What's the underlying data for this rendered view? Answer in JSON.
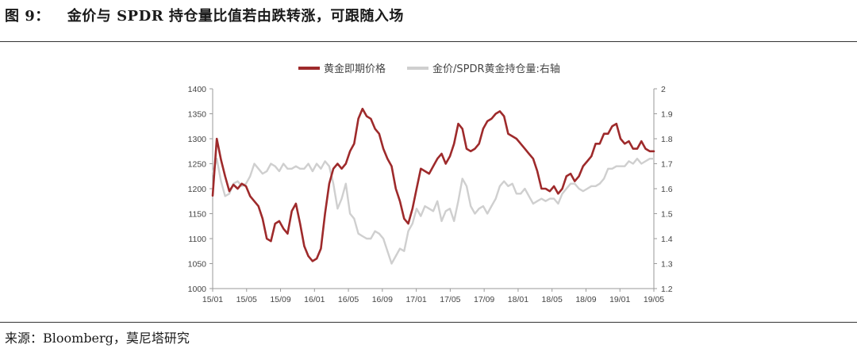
{
  "header": {
    "figure_number": "图 9：",
    "title": "金价与 SPDR 持仓量比值若由跌转涨，可跟随入场"
  },
  "footer": {
    "source": "来源：Bloomberg，莫尼塔研究"
  },
  "colors": {
    "gold_price": "#9e2a2b",
    "ratio": "#cfcfcf",
    "axis": "#9a9a9a",
    "text": "#1a1a1a"
  },
  "chart_data": {
    "type": "line",
    "legend_position": "top-center",
    "grid": false,
    "xlabel": "",
    "ylabel": "",
    "x_ticks": [
      "15/01",
      "15/05",
      "15/09",
      "16/01",
      "16/05",
      "16/09",
      "17/01",
      "17/05",
      "17/09",
      "18/01",
      "18/05",
      "18/09",
      "19/01",
      "19/05"
    ],
    "y_left": {
      "range": [
        1000,
        1400
      ],
      "ticks": [
        "1000",
        "1050",
        "1100",
        "1150",
        "1200",
        "1250",
        "1300",
        "1350",
        "1400"
      ]
    },
    "y_right": {
      "range": [
        1.2,
        2.0
      ],
      "ticks": [
        "1.2",
        "1.3",
        "1.4",
        "1.5",
        "1.6",
        "1.7",
        "1.8",
        "1.9",
        "2"
      ]
    },
    "series": [
      {
        "name": "黄金即期价格",
        "axis": "left",
        "x": [
          0,
          0.5,
          1,
          1.5,
          2,
          2.5,
          3,
          3.5,
          4,
          4.5,
          5,
          5.5,
          6,
          6.5,
          7,
          7.5,
          8,
          8.5,
          9,
          9.5,
          10,
          10.5,
          11,
          11.5,
          12,
          12.5,
          13,
          13.5,
          14,
          14.5,
          15,
          15.5,
          16,
          16.5,
          17,
          17.5,
          18,
          18.5,
          19,
          19.5,
          20,
          20.5,
          21,
          21.5,
          22,
          22.5,
          23,
          23.5,
          24,
          24.5,
          25,
          25.5,
          26,
          26.5,
          27,
          27.5,
          28,
          28.5,
          29,
          29.5,
          30,
          30.5,
          31,
          31.5,
          32,
          32.5,
          33,
          33.5,
          34,
          34.5,
          35,
          35.5,
          36,
          36.5,
          37,
          37.5,
          38,
          38.5,
          39,
          39.5,
          40,
          40.5,
          41,
          41.5,
          42,
          42.5,
          43,
          43.5,
          44,
          44.5,
          45,
          45.5,
          46,
          46.5,
          47,
          47.5,
          48,
          48.5,
          49,
          49.5,
          50,
          50.5,
          51,
          51.5,
          52,
          52.5,
          53
        ],
        "values": [
          1186,
          1300,
          1258,
          1225,
          1195,
          1208,
          1200,
          1210,
          1205,
          1185,
          1175,
          1165,
          1140,
          1100,
          1095,
          1130,
          1135,
          1120,
          1110,
          1155,
          1170,
          1130,
          1085,
          1065,
          1055,
          1060,
          1080,
          1150,
          1210,
          1240,
          1250,
          1240,
          1250,
          1275,
          1290,
          1340,
          1360,
          1345,
          1340,
          1320,
          1310,
          1280,
          1260,
          1245,
          1200,
          1175,
          1140,
          1130,
          1160,
          1200,
          1240,
          1235,
          1230,
          1245,
          1260,
          1270,
          1250,
          1265,
          1290,
          1330,
          1320,
          1280,
          1275,
          1280,
          1290,
          1320,
          1335,
          1340,
          1350,
          1355,
          1345,
          1310,
          1305,
          1300,
          1290,
          1280,
          1270,
          1260,
          1235,
          1200,
          1200,
          1195,
          1205,
          1190,
          1200,
          1225,
          1230,
          1215,
          1225,
          1245,
          1255,
          1265,
          1290,
          1290,
          1310,
          1310,
          1325,
          1330,
          1300,
          1290,
          1295,
          1280,
          1280,
          1295,
          1280,
          1275,
          1275
        ]
      },
      {
        "name": "金价/SPDR黄金持仓量:右轴",
        "axis": "right",
        "x": [
          0,
          0.5,
          1,
          1.5,
          2,
          2.5,
          3,
          3.5,
          4,
          4.5,
          5,
          5.5,
          6,
          6.5,
          7,
          7.5,
          8,
          8.5,
          9,
          9.5,
          10,
          10.5,
          11,
          11.5,
          12,
          12.5,
          13,
          13.5,
          14,
          14.5,
          15,
          15.5,
          16,
          16.5,
          17,
          17.5,
          18,
          18.5,
          19,
          19.5,
          20,
          20.5,
          21,
          21.5,
          22,
          22.5,
          23,
          23.5,
          24,
          24.5,
          25,
          25.5,
          26,
          26.5,
          27,
          27.5,
          28,
          28.5,
          29,
          29.5,
          30,
          30.5,
          31,
          31.5,
          32,
          32.5,
          33,
          33.5,
          34,
          34.5,
          35,
          35.5,
          36,
          36.5,
          37,
          37.5,
          38,
          38.5,
          39,
          39.5,
          40,
          40.5,
          41,
          41.5,
          42,
          42.5,
          43,
          43.5,
          44,
          44.5,
          45,
          45.5,
          46,
          46.5,
          47,
          47.5,
          48,
          48.5,
          49,
          49.5,
          50,
          50.5,
          51,
          51.5,
          52,
          52.5,
          53
        ],
        "values": [
          1.66,
          1.72,
          1.63,
          1.57,
          1.58,
          1.62,
          1.63,
          1.61,
          1.62,
          1.65,
          1.7,
          1.68,
          1.66,
          1.67,
          1.7,
          1.69,
          1.67,
          1.7,
          1.68,
          1.68,
          1.69,
          1.68,
          1.68,
          1.7,
          1.67,
          1.7,
          1.68,
          1.71,
          1.69,
          1.62,
          1.52,
          1.56,
          1.62,
          1.5,
          1.48,
          1.42,
          1.41,
          1.4,
          1.4,
          1.43,
          1.42,
          1.4,
          1.35,
          1.3,
          1.33,
          1.36,
          1.35,
          1.43,
          1.46,
          1.52,
          1.49,
          1.53,
          1.52,
          1.51,
          1.55,
          1.47,
          1.51,
          1.52,
          1.47,
          1.55,
          1.64,
          1.61,
          1.53,
          1.5,
          1.52,
          1.53,
          1.5,
          1.53,
          1.56,
          1.61,
          1.63,
          1.61,
          1.62,
          1.58,
          1.58,
          1.6,
          1.57,
          1.54,
          1.55,
          1.56,
          1.55,
          1.56,
          1.56,
          1.54,
          1.58,
          1.6,
          1.62,
          1.62,
          1.6,
          1.59,
          1.6,
          1.61,
          1.61,
          1.62,
          1.64,
          1.68,
          1.68,
          1.69,
          1.69,
          1.69,
          1.71,
          1.7,
          1.72,
          1.7,
          1.71,
          1.72,
          1.72
        ]
      }
    ]
  }
}
